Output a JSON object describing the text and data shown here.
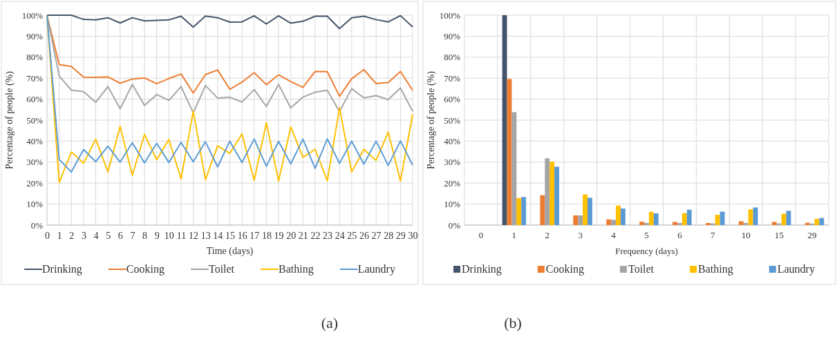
{
  "chart_data": [
    {
      "type": "line",
      "xlabel": "Time (days)",
      "ylabel": "Percentage of people (%)",
      "x": [
        0,
        1,
        2,
        3,
        4,
        5,
        6,
        7,
        8,
        9,
        10,
        11,
        12,
        13,
        14,
        15,
        16,
        17,
        18,
        19,
        20,
        21,
        22,
        23,
        24,
        25,
        26,
        27,
        28,
        29,
        30
      ],
      "xlim": [
        0,
        30
      ],
      "xticks": [
        0,
        1,
        2,
        3,
        4,
        5,
        6,
        7,
        8,
        9,
        10,
        11,
        12,
        13,
        14,
        15,
        16,
        17,
        18,
        19,
        20,
        21,
        22,
        23,
        24,
        25,
        26,
        27,
        28,
        29,
        30
      ],
      "ylim": [
        0,
        100
      ],
      "yticks": [
        {
          "value": 0,
          "label": "0%"
        },
        {
          "value": 10,
          "label": "10%"
        },
        {
          "value": 20,
          "label": "20%"
        },
        {
          "value": 30,
          "label": "30%"
        },
        {
          "value": 40,
          "label": "40%"
        },
        {
          "value": 50,
          "label": "50%"
        },
        {
          "value": 60,
          "label": "60%"
        },
        {
          "value": 70,
          "label": "70%"
        },
        {
          "value": 80,
          "label": "80%"
        },
        {
          "value": 90,
          "label": "90%"
        },
        {
          "value": 100,
          "label": "100%"
        }
      ],
      "grid": true,
      "legend": "bottom",
      "marker": "none",
      "line_style": "solid",
      "series": [
        {
          "name": "Drinking",
          "color": "#44546a",
          "values": [
            100,
            100,
            100,
            98,
            97.8,
            98.8,
            96.3,
            98.8,
            97.3,
            97.5,
            97.8,
            99.5,
            94.3,
            99.6,
            98.8,
            96.7,
            96.8,
            99.7,
            95.8,
            99.7,
            96.2,
            97.1,
            99.5,
            99.5,
            93.6,
            98.8,
            99.5,
            97.9,
            96.8,
            99.8,
            94.4
          ]
        },
        {
          "name": "Cooking",
          "color": "#ed7d31",
          "values": [
            100,
            76.5,
            75.6,
            70.5,
            70.4,
            70.6,
            67.6,
            69.6,
            70.1,
            67.4,
            69.8,
            72,
            62.9,
            71.7,
            73.9,
            64.7,
            68.1,
            72.6,
            66.9,
            71.6,
            68.4,
            65.6,
            73.2,
            73.1,
            61.4,
            69.7,
            74.1,
            67.4,
            67.9,
            73.2,
            64.2
          ]
        },
        {
          "name": "Toilet",
          "color": "#a5a5a5",
          "values": [
            100,
            71,
            64.3,
            63.6,
            58.5,
            66,
            55.4,
            67,
            57,
            62.2,
            59.4,
            66,
            53.5,
            66.5,
            60.5,
            60.9,
            58.6,
            64.6,
            56.5,
            67,
            55.8,
            61,
            63.3,
            64.2,
            54,
            65,
            60.6,
            61.7,
            59.8,
            65.3,
            54.2
          ]
        },
        {
          "name": "Bathing",
          "color": "#ffc000",
          "values": [
            100,
            20.3,
            34.8,
            29.5,
            40.9,
            25.4,
            47,
            23.7,
            43.2,
            31.1,
            40.8,
            22,
            54.3,
            21.6,
            37.8,
            34.2,
            43.4,
            21.3,
            48.8,
            21,
            46.8,
            32.3,
            36.1,
            21.1,
            55.9,
            25.3,
            36.1,
            30.8,
            44.3,
            21,
            52.8
          ]
        },
        {
          "name": "Laundry",
          "color": "#5b9bd5",
          "values": [
            100,
            31.3,
            25.3,
            36,
            30.2,
            37.6,
            30,
            39.2,
            29.6,
            39,
            29.8,
            39.4,
            30.2,
            39.7,
            27.7,
            40,
            29.8,
            41,
            28,
            39.9,
            29.2,
            40.9,
            27,
            41.1,
            29.4,
            40,
            29,
            40,
            28.4,
            40.1,
            28.6
          ]
        }
      ],
      "annotations": [
        "(a)"
      ]
    },
    {
      "type": "bar",
      "xlabel": "Frequency (days)",
      "ylabel": "Percentage of people (%)",
      "categories": [
        "0",
        "1",
        "2",
        "3",
        "4",
        "5",
        "6",
        "7",
        "10",
        "15",
        "29"
      ],
      "ylim": [
        0,
        100
      ],
      "yticks": [
        {
          "value": 0,
          "label": "0%"
        },
        {
          "value": 10,
          "label": "10%"
        },
        {
          "value": 20,
          "label": "20%"
        },
        {
          "value": 30,
          "label": "30%"
        },
        {
          "value": 40,
          "label": "40%"
        },
        {
          "value": 50,
          "label": "50%"
        },
        {
          "value": 60,
          "label": "60%"
        },
        {
          "value": 70,
          "label": "70%"
        },
        {
          "value": 80,
          "label": "80%"
        },
        {
          "value": 90,
          "label": "90%"
        },
        {
          "value": 100,
          "label": "100%"
        }
      ],
      "grid": true,
      "legend": "bottom",
      "series": [
        {
          "name": "Drinking",
          "color": "#44546a",
          "values": [
            0,
            100,
            0,
            0,
            0,
            0,
            0,
            0,
            0,
            0,
            0
          ]
        },
        {
          "name": "Cooking",
          "color": "#ed7d31",
          "values": [
            0,
            69.6,
            14.2,
            4.6,
            2.7,
            1.6,
            1.5,
            1.0,
            1.8,
            1.5,
            1.1
          ]
        },
        {
          "name": "Toilet",
          "color": "#a5a5a5",
          "values": [
            0,
            53.8,
            31.8,
            4.6,
            2.5,
            1.0,
            1.0,
            0.8,
            1.0,
            0.8,
            0.7
          ]
        },
        {
          "name": "Bathing",
          "color": "#ffc000",
          "values": [
            0,
            12.9,
            30.2,
            14.6,
            9.3,
            6.3,
            5.7,
            4.9,
            7.5,
            5.4,
            3.0
          ]
        },
        {
          "name": "Laundry",
          "color": "#5b9bd5",
          "values": [
            0,
            13.4,
            27.8,
            13.0,
            7.9,
            5.6,
            7.3,
            6.4,
            8.4,
            6.8,
            3.4
          ]
        }
      ],
      "annotations": [
        "(b)"
      ]
    }
  ]
}
